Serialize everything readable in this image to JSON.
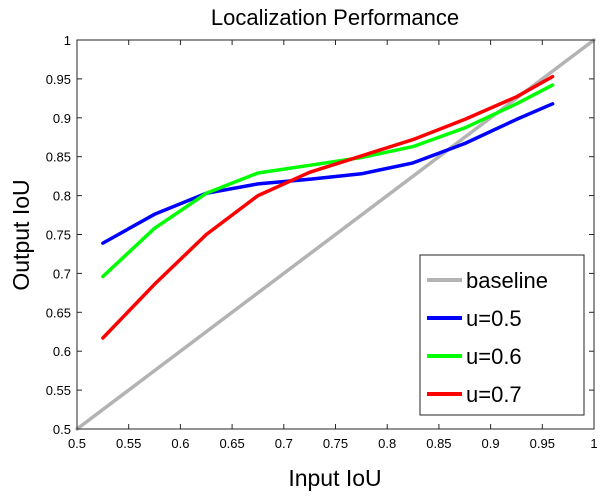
{
  "chart_data": {
    "type": "line",
    "title": "Localization Performance",
    "xlabel": "Input IoU",
    "ylabel": "Output IoU",
    "xlim": [
      0.5,
      1
    ],
    "ylim": [
      0.5,
      1
    ],
    "xticks": [
      "0.5",
      "0.55",
      "0.6",
      "0.65",
      "0.7",
      "0.75",
      "0.8",
      "0.85",
      "0.9",
      "0.95",
      "1"
    ],
    "yticks": [
      "0.5",
      "0.55",
      "0.6",
      "0.65",
      "0.7",
      "0.75",
      "0.8",
      "0.85",
      "0.9",
      "0.95",
      "1"
    ],
    "grid": false,
    "legend_position": "bottom-right",
    "series": [
      {
        "name": "baseline",
        "color": "#b3b3b3",
        "x": [
          0.5,
          1.0
        ],
        "y": [
          0.5,
          1.0
        ]
      },
      {
        "name": "u=0.5",
        "color": "#0000ff",
        "x": [
          0.525,
          0.575,
          0.625,
          0.675,
          0.725,
          0.775,
          0.825,
          0.875,
          0.925,
          0.96
        ],
        "y": [
          0.739,
          0.776,
          0.803,
          0.815,
          0.821,
          0.828,
          0.842,
          0.867,
          0.898,
          0.918
        ]
      },
      {
        "name": "u=0.6",
        "color": "#00ff00",
        "x": [
          0.525,
          0.575,
          0.625,
          0.675,
          0.725,
          0.775,
          0.825,
          0.875,
          0.925,
          0.96
        ],
        "y": [
          0.696,
          0.758,
          0.803,
          0.829,
          0.839,
          0.849,
          0.863,
          0.887,
          0.918,
          0.942
        ]
      },
      {
        "name": "u=0.7",
        "color": "#ff0000",
        "x": [
          0.525,
          0.575,
          0.625,
          0.675,
          0.725,
          0.775,
          0.825,
          0.875,
          0.925,
          0.96
        ],
        "y": [
          0.617,
          0.686,
          0.75,
          0.8,
          0.83,
          0.851,
          0.872,
          0.898,
          0.927,
          0.953
        ]
      }
    ]
  }
}
